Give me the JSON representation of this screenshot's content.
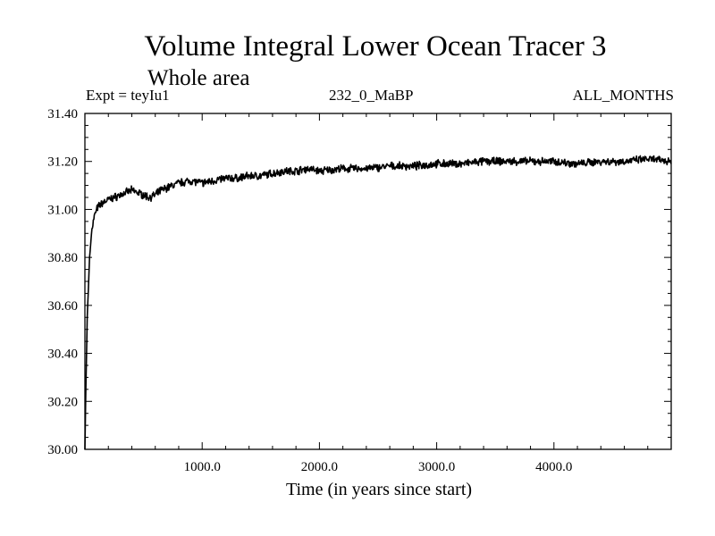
{
  "header": {
    "title": "Volume Integral Lower Ocean Tracer 3",
    "subtitle": "Whole area",
    "left": "Expt = teyIu1",
    "center": "232_0_MaBP",
    "right": "ALL_MONTHS"
  },
  "chart_data": {
    "type": "line",
    "title": "Volume Integral Lower Ocean Tracer 3",
    "subtitle": "Whole area",
    "xlabel": "Time (in years since start)",
    "ylabel": "",
    "xlim": [
      0,
      5000
    ],
    "ylim": [
      30.0,
      31.4
    ],
    "xticks": [
      1000,
      2000,
      3000,
      4000
    ],
    "xtick_labels": [
      "1000.0",
      "2000.0",
      "3000.0",
      "4000.0"
    ],
    "yticks": [
      30.0,
      30.2,
      30.4,
      30.6,
      30.8,
      31.0,
      31.2,
      31.4
    ],
    "ytick_labels": [
      "30.00",
      "30.20",
      "30.40",
      "30.60",
      "30.80",
      "31.00",
      "31.20",
      "31.40"
    ],
    "series": [
      {
        "name": "Lower Ocean Tracer 3",
        "x": [
          0,
          10,
          20,
          40,
          60,
          80,
          100,
          130,
          160,
          200,
          250,
          300,
          350,
          400,
          450,
          500,
          550,
          600,
          650,
          700,
          800,
          900,
          1000,
          1100,
          1200,
          1300,
          1400,
          1500,
          1600,
          1700,
          1800,
          1900,
          2000,
          2200,
          2400,
          2600,
          2800,
          3000,
          3200,
          3400,
          3600,
          3800,
          4000,
          4200,
          4400,
          4600,
          4800,
          5000
        ],
        "values": [
          30.0,
          30.3,
          30.55,
          30.8,
          30.92,
          30.97,
          31.0,
          31.02,
          31.03,
          31.04,
          31.05,
          31.06,
          31.07,
          31.08,
          31.07,
          31.06,
          31.05,
          31.06,
          31.08,
          31.09,
          31.11,
          31.12,
          31.11,
          31.12,
          31.13,
          31.13,
          31.14,
          31.14,
          31.15,
          31.16,
          31.16,
          31.17,
          31.16,
          31.17,
          31.17,
          31.18,
          31.18,
          31.19,
          31.19,
          31.2,
          31.2,
          31.2,
          31.2,
          31.19,
          31.2,
          31.2,
          31.21,
          31.2
        ]
      }
    ]
  }
}
